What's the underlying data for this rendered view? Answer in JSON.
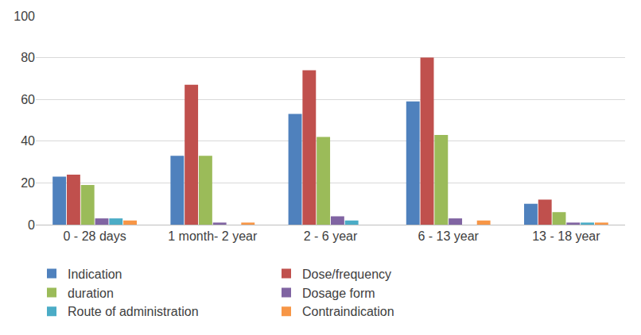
{
  "chart_data": {
    "type": "bar",
    "categories": [
      "0 - 28 days",
      "1 month- 2 year",
      "2 - 6 year",
      "6 - 13 year",
      "13 - 18 year"
    ],
    "series": [
      {
        "name": "Indication",
        "color": "#4F81BD",
        "values": [
          23,
          33,
          53,
          59,
          10
        ]
      },
      {
        "name": "Dose/frequency",
        "color": "#C0504D",
        "values": [
          24,
          67,
          74,
          80,
          12
        ]
      },
      {
        "name": "duration",
        "color": "#9BBB59",
        "values": [
          19,
          33,
          42,
          43,
          6
        ]
      },
      {
        "name": "Dosage form",
        "color": "#8064A2",
        "values": [
          3,
          1,
          4,
          3,
          1
        ]
      },
      {
        "name": "Route of administration",
        "color": "#4BACC6",
        "values": [
          3,
          0,
          2,
          0,
          1
        ]
      },
      {
        "name": "Contraindication",
        "color": "#F79646",
        "values": [
          2,
          1,
          0,
          2,
          1
        ]
      }
    ],
    "ylim": [
      0,
      100
    ],
    "yticks": [
      0,
      20,
      40,
      60,
      80,
      100
    ],
    "grid": true,
    "legend": "bottom"
  }
}
